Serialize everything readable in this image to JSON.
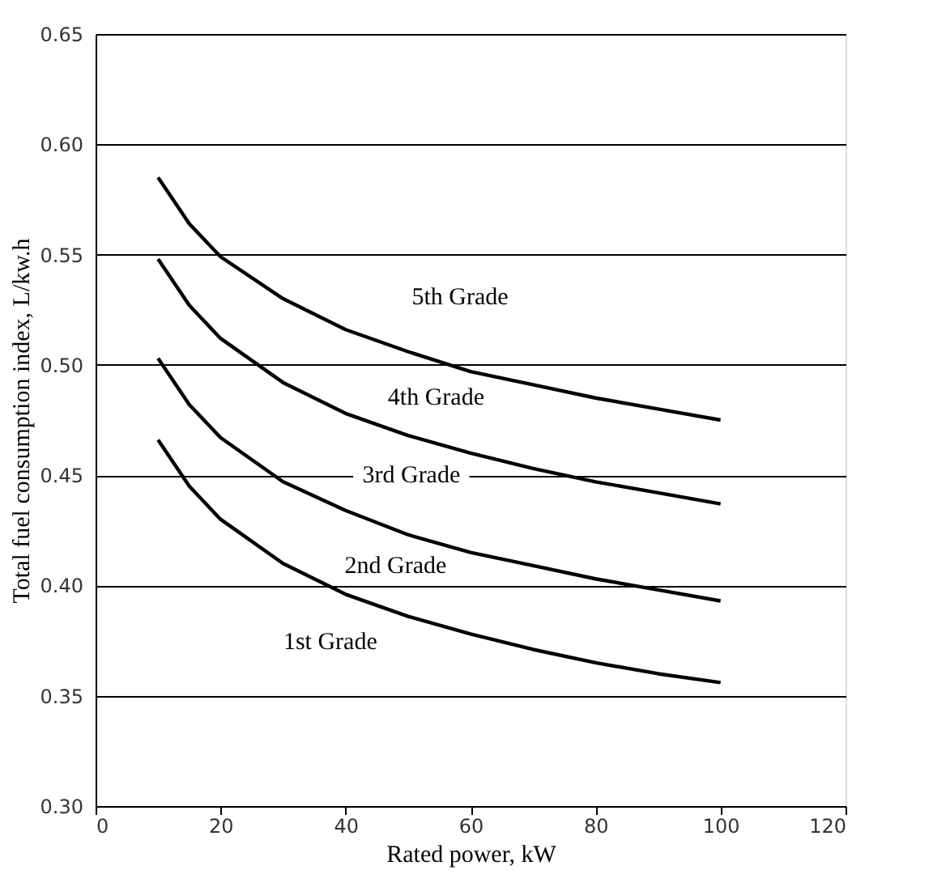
{
  "chart_data": {
    "type": "line",
    "xlabel": "Rated power, kW",
    "ylabel": "Total fuel consumption index, L/kw.h",
    "x": [
      10,
      15,
      20,
      30,
      40,
      50,
      60,
      70,
      80,
      90,
      100
    ],
    "series": [
      {
        "color": "#000000",
        "values": [
          0.585,
          0.564,
          0.549,
          0.53,
          0.516,
          0.506,
          0.497,
          0.491,
          0.485,
          0.48,
          0.475
        ]
      },
      {
        "color": "#000000",
        "values": [
          0.548,
          0.527,
          0.512,
          0.492,
          0.478,
          0.468,
          0.46,
          0.453,
          0.447,
          0.442,
          0.437
        ]
      },
      {
        "color": "#000000",
        "values": [
          0.503,
          0.482,
          0.467,
          0.447,
          0.434,
          0.423,
          0.415,
          0.409,
          0.403,
          0.398,
          0.393
        ]
      },
      {
        "color": "#000000",
        "values": [
          0.466,
          0.445,
          0.43,
          0.41,
          0.396,
          0.386,
          0.378,
          0.371,
          0.365,
          0.36,
          0.356
        ]
      }
    ],
    "xlim": [
      0,
      120
    ],
    "xticks": [
      0,
      20,
      40,
      60,
      80,
      100,
      120
    ],
    "ylim": [
      0.3,
      0.65
    ],
    "yticks": [
      {
        "value": 0.3,
        "label": "0.30"
      },
      {
        "value": 0.35,
        "label": "0.35"
      },
      {
        "value": 0.4,
        "label": "0.40"
      },
      {
        "value": 0.45,
        "label": "0.45"
      },
      {
        "value": 0.5,
        "label": "0.50"
      },
      {
        "value": 0.55,
        "label": "0.55"
      },
      {
        "value": 0.6,
        "label": "0.60"
      },
      {
        "value": 0.65,
        "label": "0.65"
      }
    ],
    "grid": "y",
    "marker": "none",
    "line_style": "solid",
    "annotations": [
      "5th Grade",
      "4th Grade",
      "3rd Grade",
      "2nd Grade",
      "1st Grade"
    ]
  }
}
